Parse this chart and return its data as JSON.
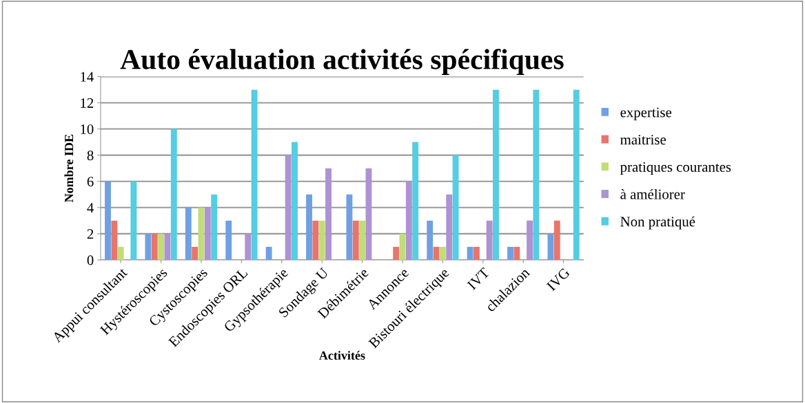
{
  "chart_data": {
    "type": "bar",
    "title": "Auto évaluation activités spécifiques",
    "xlabel": "Activités",
    "ylabel": "Nombre IDE",
    "categories": [
      "Appui consultant",
      "Hystéroscopies",
      "Cystoscopies",
      "Endoscopies ORL",
      "Gypsothérapie",
      "Sondage U",
      "Débimétrie",
      "Annonce",
      "Bistouri électrique",
      "IVT",
      "chalazion",
      "IVG"
    ],
    "series": [
      {
        "name": "expertise",
        "color": "#6fa0e2",
        "values": [
          6,
          2,
          4,
          3,
          1,
          5,
          5,
          0,
          3,
          1,
          1,
          2
        ]
      },
      {
        "name": "maitrise",
        "color": "#e8756c",
        "values": [
          3,
          2,
          1,
          0,
          0,
          3,
          3,
          1,
          1,
          1,
          1,
          3
        ]
      },
      {
        "name": "pratiques courantes",
        "color": "#c2dc78",
        "values": [
          1,
          2,
          4,
          0,
          0,
          3,
          3,
          2,
          1,
          0,
          0,
          0
        ]
      },
      {
        "name": "à améliorer",
        "color": "#ae92d2",
        "values": [
          0,
          2,
          4,
          2,
          8,
          7,
          7,
          6,
          5,
          3,
          3,
          0
        ]
      },
      {
        "name": "Non pratiqué",
        "color": "#55cde2",
        "values": [
          6,
          10,
          5,
          13,
          9,
          0,
          0,
          9,
          8,
          13,
          13,
          13
        ]
      }
    ],
    "ylim": [
      0,
      14
    ],
    "yticks": [
      0,
      2,
      4,
      6,
      8,
      10,
      12,
      14
    ],
    "grid": "y",
    "legend": "right"
  }
}
